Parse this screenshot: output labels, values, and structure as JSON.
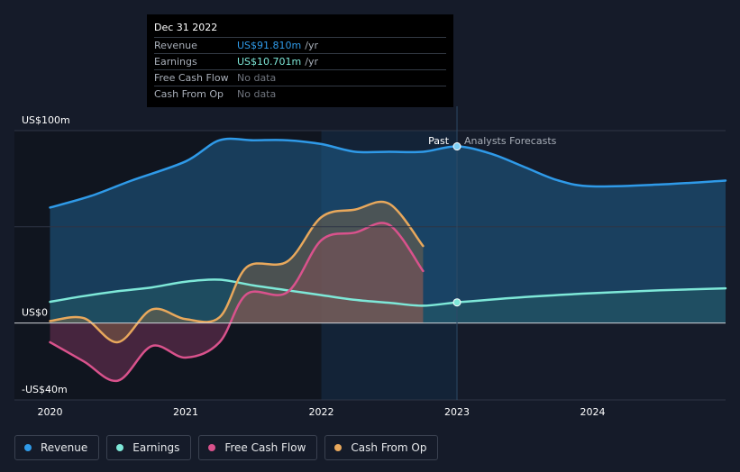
{
  "tooltip": {
    "date": "Dec 31 2022",
    "rows": [
      {
        "label": "Revenue",
        "value": "US$91.810m",
        "unit": "/yr",
        "color": "#2f9ae8"
      },
      {
        "label": "Earnings",
        "value": "US$10.701m",
        "unit": "/yr",
        "color": "#7ee8d8"
      },
      {
        "label": "Free Cash Flow",
        "value": "No data",
        "unit": "",
        "color": "#70757e"
      },
      {
        "label": "Cash From Op",
        "value": "No data",
        "unit": "",
        "color": "#70757e"
      }
    ]
  },
  "markers": {
    "past": "Past",
    "forecast": "Analysts Forecasts"
  },
  "legend": [
    {
      "label": "Revenue",
      "color": "#2f9ae8"
    },
    {
      "label": "Earnings",
      "color": "#7ee8d8"
    },
    {
      "label": "Free Cash Flow",
      "color": "#d9528c"
    },
    {
      "label": "Cash From Op",
      "color": "#e8a85c"
    }
  ],
  "chart_data": {
    "type": "line",
    "ylim": [
      -40,
      100
    ],
    "xlim": [
      2019.95,
      2024.98
    ],
    "past_boundary": 2023.0,
    "highlight_start": 2022.0,
    "y_ticks": [
      {
        "value": 100,
        "label": "US$100m"
      },
      {
        "value": 0,
        "label": "US$0"
      },
      {
        "value": -40,
        "label": "-US$40m"
      }
    ],
    "x_ticks": [
      {
        "value": 2020,
        "label": "2020"
      },
      {
        "value": 2021,
        "label": "2021"
      },
      {
        "value": 2022,
        "label": "2022"
      },
      {
        "value": 2023,
        "label": "2023"
      },
      {
        "value": 2024,
        "label": "2024"
      }
    ],
    "series": [
      {
        "name": "Revenue",
        "color": "#2f9ae8",
        "x": [
          2020.0,
          2020.3,
          2020.6,
          2021.0,
          2021.25,
          2021.5,
          2021.75,
          2022.0,
          2022.25,
          2022.5,
          2022.75,
          2023.0,
          2023.25,
          2023.5,
          2023.75,
          2024.0,
          2024.5,
          2024.98
        ],
        "y": [
          60,
          66,
          74,
          84,
          95,
          95,
          95,
          93,
          89,
          89,
          89,
          91.8,
          88,
          81,
          74,
          71,
          72,
          74
        ]
      },
      {
        "name": "Earnings",
        "color": "#7ee8d8",
        "x": [
          2020.0,
          2020.25,
          2020.5,
          2020.75,
          2021.0,
          2021.25,
          2021.5,
          2021.75,
          2022.0,
          2022.25,
          2022.5,
          2022.75,
          2023.0,
          2023.5,
          2024.0,
          2024.5,
          2024.98
        ],
        "y": [
          11,
          14,
          16.5,
          18.5,
          21.5,
          22.5,
          19.5,
          17,
          14.5,
          12,
          10.5,
          9,
          10.7,
          13.5,
          15.5,
          17,
          18
        ]
      },
      {
        "name": "Free Cash Flow",
        "color": "#d9528c",
        "x": [
          2020.0,
          2020.25,
          2020.5,
          2020.75,
          2021.0,
          2021.25,
          2021.45,
          2021.75,
          2022.0,
          2022.25,
          2022.5,
          2022.75
        ],
        "y": [
          -10,
          -20,
          -30,
          -12,
          -18,
          -10,
          15,
          16,
          43,
          47,
          51,
          27
        ]
      },
      {
        "name": "Cash From Op",
        "color": "#e8a85c",
        "x": [
          2020.0,
          2020.25,
          2020.5,
          2020.75,
          2021.0,
          2021.25,
          2021.45,
          2021.75,
          2022.0,
          2022.25,
          2022.5,
          2022.75
        ],
        "y": [
          1,
          2.5,
          -10,
          7,
          2,
          3,
          29,
          32,
          55,
          59,
          62,
          40
        ]
      }
    ]
  }
}
